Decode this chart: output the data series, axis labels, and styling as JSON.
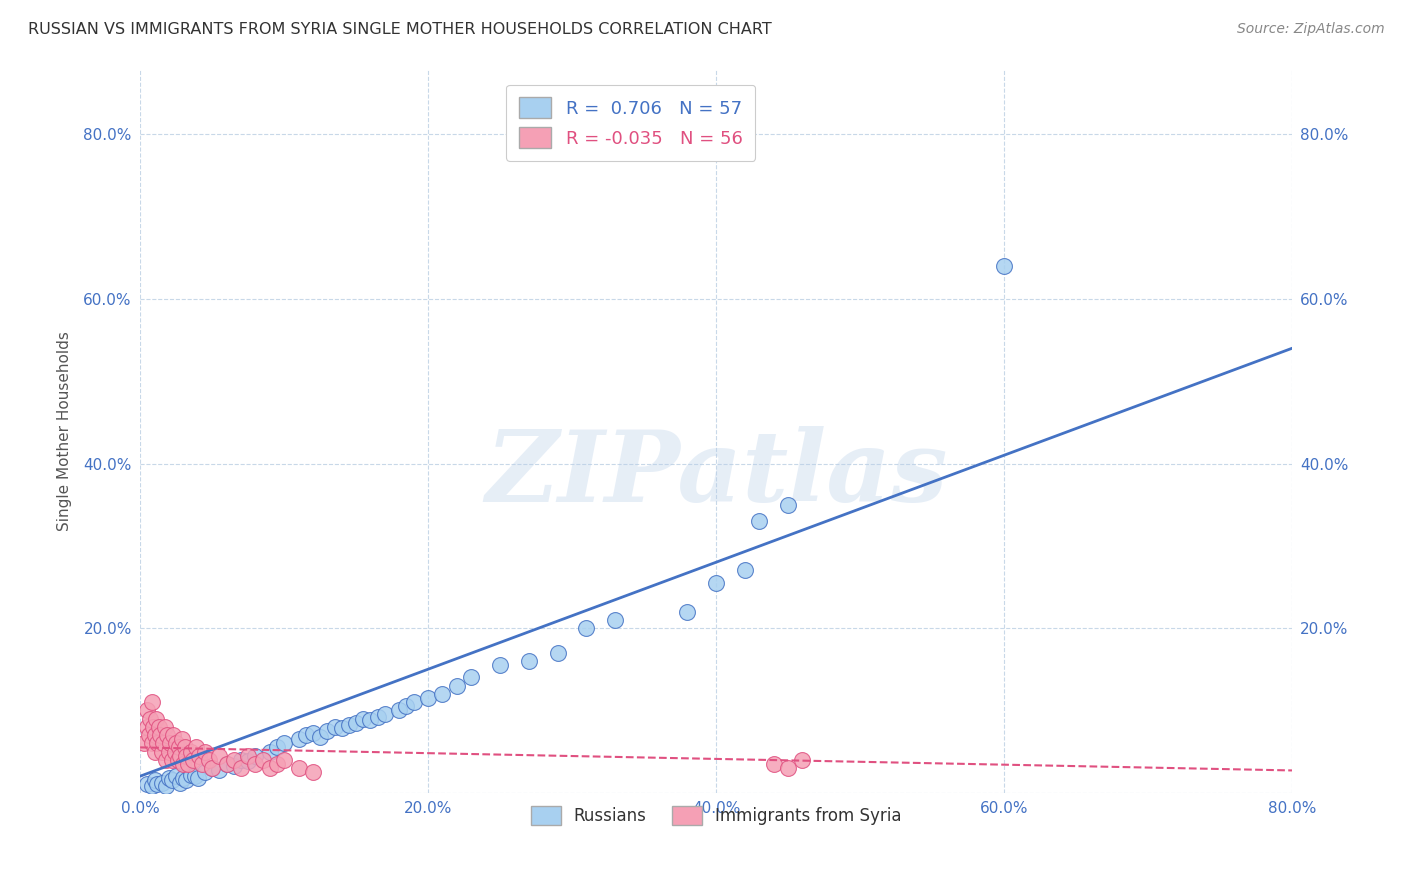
{
  "title": "RUSSIAN VS IMMIGRANTS FROM SYRIA SINGLE MOTHER HOUSEHOLDS CORRELATION CHART",
  "source": "Source: ZipAtlas.com",
  "ylabel": "Single Mother Households",
  "xlim": [
    0.0,
    0.8
  ],
  "ylim": [
    0.0,
    0.88
  ],
  "color_blue": "#a8d0f0",
  "color_pink": "#f5a0b5",
  "line_blue": "#4472c4",
  "line_pink": "#e05080",
  "watermark": "ZIPatlas",
  "blue_r": 0.706,
  "blue_n": 57,
  "pink_r": -0.035,
  "pink_n": 56,
  "blue_x": [
    0.005,
    0.008,
    0.01,
    0.012,
    0.015,
    0.018,
    0.02,
    0.022,
    0.025,
    0.028,
    0.03,
    0.032,
    0.035,
    0.038,
    0.04,
    0.045,
    0.05,
    0.055,
    0.06,
    0.065,
    0.07,
    0.075,
    0.08,
    0.09,
    0.095,
    0.1,
    0.11,
    0.115,
    0.12,
    0.125,
    0.13,
    0.135,
    0.14,
    0.145,
    0.15,
    0.155,
    0.16,
    0.165,
    0.17,
    0.18,
    0.185,
    0.19,
    0.2,
    0.21,
    0.22,
    0.23,
    0.25,
    0.27,
    0.29,
    0.31,
    0.33,
    0.38,
    0.4,
    0.42,
    0.43,
    0.45,
    0.6
  ],
  "blue_y": [
    0.01,
    0.008,
    0.015,
    0.01,
    0.012,
    0.008,
    0.018,
    0.015,
    0.02,
    0.012,
    0.018,
    0.015,
    0.022,
    0.02,
    0.018,
    0.025,
    0.03,
    0.028,
    0.035,
    0.032,
    0.04,
    0.038,
    0.045,
    0.05,
    0.055,
    0.06,
    0.065,
    0.07,
    0.072,
    0.068,
    0.075,
    0.08,
    0.078,
    0.082,
    0.085,
    0.09,
    0.088,
    0.092,
    0.095,
    0.1,
    0.105,
    0.11,
    0.115,
    0.12,
    0.13,
    0.14,
    0.155,
    0.16,
    0.17,
    0.2,
    0.21,
    0.22,
    0.255,
    0.27,
    0.33,
    0.35,
    0.64
  ],
  "pink_x": [
    0.003,
    0.005,
    0.005,
    0.006,
    0.007,
    0.008,
    0.008,
    0.009,
    0.01,
    0.01,
    0.011,
    0.012,
    0.013,
    0.014,
    0.015,
    0.016,
    0.017,
    0.018,
    0.019,
    0.02,
    0.021,
    0.022,
    0.023,
    0.024,
    0.025,
    0.026,
    0.027,
    0.028,
    0.029,
    0.03,
    0.031,
    0.032,
    0.033,
    0.035,
    0.037,
    0.039,
    0.041,
    0.043,
    0.045,
    0.048,
    0.05,
    0.055,
    0.06,
    0.065,
    0.07,
    0.075,
    0.08,
    0.085,
    0.09,
    0.095,
    0.1,
    0.11,
    0.12,
    0.44,
    0.45,
    0.46
  ],
  "pink_y": [
    0.06,
    0.08,
    0.1,
    0.07,
    0.09,
    0.11,
    0.06,
    0.08,
    0.07,
    0.05,
    0.09,
    0.06,
    0.08,
    0.07,
    0.05,
    0.06,
    0.08,
    0.04,
    0.07,
    0.05,
    0.06,
    0.04,
    0.07,
    0.05,
    0.06,
    0.04,
    0.055,
    0.045,
    0.065,
    0.035,
    0.055,
    0.045,
    0.035,
    0.05,
    0.04,
    0.055,
    0.045,
    0.035,
    0.05,
    0.04,
    0.03,
    0.045,
    0.035,
    0.04,
    0.03,
    0.045,
    0.035,
    0.04,
    0.03,
    0.035,
    0.04,
    0.03,
    0.025,
    0.035,
    0.03,
    0.04
  ],
  "blue_line_x": [
    0.0,
    0.8
  ],
  "blue_line_y": [
    0.02,
    0.54
  ],
  "pink_line_x": [
    0.0,
    0.8
  ],
  "pink_line_y": [
    0.055,
    0.027
  ]
}
